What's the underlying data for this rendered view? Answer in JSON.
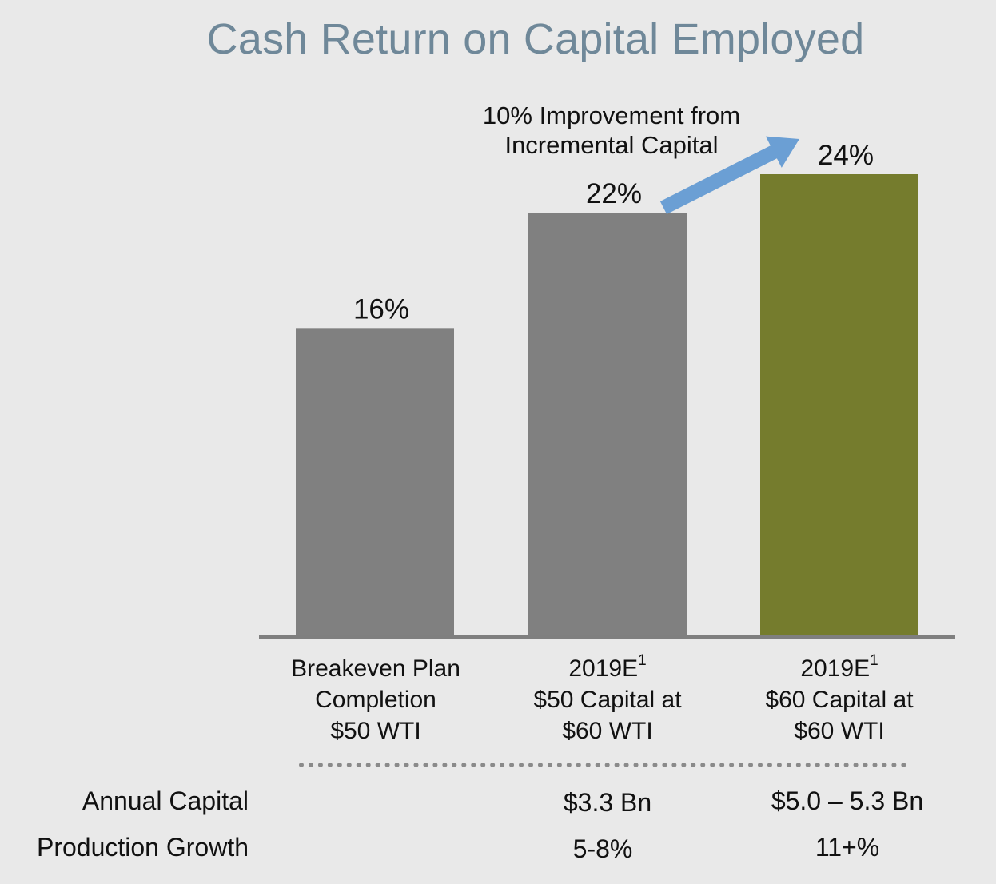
{
  "chart_data": {
    "type": "bar",
    "title": "Cash Return on Capital Employed",
    "categories": [
      {
        "line1": "Breakeven Plan",
        "line1_sup": "",
        "line2": "Completion",
        "line3": "$50 WTI"
      },
      {
        "line1": "2019E",
        "line1_sup": "1",
        "line2": "$50 Capital at",
        "line3": "$60 WTI"
      },
      {
        "line1": "2019E",
        "line1_sup": "1",
        "line2": "$60 Capital at",
        "line3": "$60 WTI"
      }
    ],
    "values": [
      16,
      22,
      24
    ],
    "value_labels": [
      "16%",
      "22%",
      "24%"
    ],
    "bar_colors": [
      "#808080",
      "#808080",
      "#757c2d"
    ],
    "arrow_color": "#6b9fd4",
    "axis_color": "#7f7f7f",
    "ylim": [
      0,
      24
    ],
    "annotation": {
      "line1": "10% Improvement from",
      "line2": "Incremental Capital"
    }
  },
  "table": {
    "rows": [
      {
        "label": "Annual Capital",
        "values": [
          "",
          "$3.3 Bn",
          "$5.0 – 5.3 Bn"
        ]
      },
      {
        "label": "Production Growth",
        "values": [
          "",
          "5-8%",
          "11+%"
        ]
      }
    ]
  }
}
